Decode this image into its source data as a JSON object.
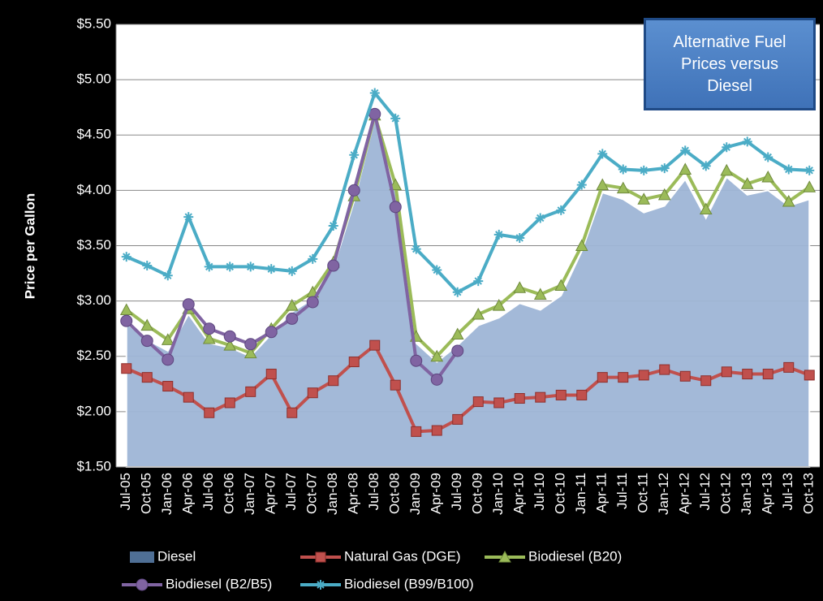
{
  "chart_data": {
    "type": "line",
    "annotation": "Alternative Fuel Prices versus Diesel",
    "y_label": "Price per Gallon",
    "categories": [
      "Jul-05",
      "Oct-05",
      "Jan-06",
      "Apr-06",
      "Jul-06",
      "Oct-06",
      "Jan-07",
      "Apr-07",
      "Jul-07",
      "Oct-07",
      "Jan-08",
      "Apr-08",
      "Jul-08",
      "Oct-08",
      "Jan-09",
      "Apr-09",
      "Jul-09",
      "Oct-09",
      "Jan-10",
      "Apr-10",
      "Jul-10",
      "Oct-10",
      "Jan-11",
      "Apr-11",
      "Jul-11",
      "Oct-11",
      "Jan-12",
      "Apr-12",
      "Jul-12",
      "Oct-12",
      "Jan-13",
      "Apr-13",
      "Jul-13",
      "Oct-13"
    ],
    "series": [
      {
        "name": "Diesel",
        "type": "area",
        "color": "#9fb6d6",
        "values": [
          2.8,
          2.65,
          2.55,
          2.88,
          2.62,
          2.58,
          2.5,
          2.7,
          2.9,
          3.02,
          3.3,
          3.9,
          4.65,
          4.0,
          2.62,
          2.45,
          2.6,
          2.78,
          2.85,
          2.98,
          2.92,
          3.05,
          3.45,
          3.98,
          3.92,
          3.8,
          3.86,
          4.1,
          3.75,
          4.12,
          3.96,
          4.0,
          3.86,
          3.92
        ]
      },
      {
        "name": "Natural Gas (DGE)",
        "marker": "square",
        "color": "#c0504d",
        "values": [
          2.39,
          2.31,
          2.23,
          2.13,
          1.99,
          2.08,
          2.18,
          2.34,
          1.99,
          2.17,
          2.28,
          2.45,
          2.6,
          2.24,
          1.82,
          1.83,
          1.93,
          2.09,
          2.08,
          2.12,
          2.13,
          2.15,
          2.15,
          2.31,
          2.31,
          2.33,
          2.38,
          2.32,
          2.28,
          2.36,
          2.34,
          2.34,
          2.4,
          2.33
        ]
      },
      {
        "name": "Biodiesel (B20)",
        "marker": "triangle",
        "color": "#9bbb59",
        "values": [
          2.92,
          2.78,
          2.65,
          2.93,
          2.66,
          2.6,
          2.53,
          2.75,
          2.96,
          3.08,
          3.35,
          3.95,
          4.68,
          4.05,
          2.68,
          2.5,
          2.7,
          2.88,
          2.96,
          3.12,
          3.06,
          3.14,
          3.5,
          4.05,
          4.02,
          3.92,
          3.96,
          4.19,
          3.83,
          4.18,
          4.06,
          4.12,
          3.9,
          4.03
        ]
      },
      {
        "name": "Biodiesel (B2/B5)",
        "marker": "circle",
        "color": "#8064a2",
        "values": [
          2.82,
          2.64,
          2.47,
          2.97,
          2.75,
          2.68,
          2.61,
          2.72,
          2.84,
          2.99,
          3.32,
          4.0,
          4.69,
          3.85,
          2.46,
          2.29,
          2.55,
          null,
          null,
          null,
          null,
          null,
          null,
          null,
          null,
          null,
          null,
          null,
          null,
          null,
          null,
          null,
          null,
          null
        ]
      },
      {
        "name": "Biodiesel (B99/B100)",
        "marker": "star",
        "color": "#4bacc6",
        "values": [
          3.4,
          3.32,
          3.23,
          3.76,
          3.31,
          3.31,
          3.31,
          3.29,
          3.27,
          3.38,
          3.68,
          4.32,
          4.88,
          4.65,
          3.47,
          3.28,
          3.08,
          3.18,
          3.6,
          3.57,
          3.75,
          3.82,
          4.05,
          4.33,
          4.19,
          4.18,
          4.2,
          4.36,
          4.22,
          4.39,
          4.44,
          4.3,
          4.19,
          4.18
        ]
      }
    ],
    "ylim": [
      1.5,
      5.5
    ],
    "yticks": [
      {
        "value": 1.5,
        "label": "$1.50"
      },
      {
        "value": 2,
        "label": "$2.00"
      },
      {
        "value": 2.5,
        "label": "$2.50"
      },
      {
        "value": 3,
        "label": "$3.00"
      },
      {
        "value": 3.5,
        "label": "$3.50"
      },
      {
        "value": 4,
        "label": "$4.00"
      },
      {
        "value": 4.5,
        "label": "$4.50"
      },
      {
        "value": 5,
        "label": "$5.00"
      },
      {
        "value": 5.5,
        "label": "$5.50"
      }
    ],
    "grid": true
  }
}
